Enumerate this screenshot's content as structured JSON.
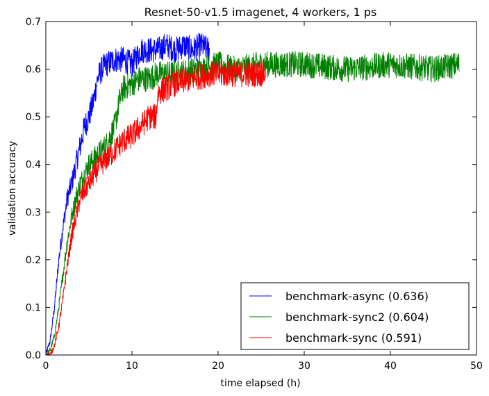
{
  "chart_data": {
    "type": "line",
    "title": "Resnet-50-v1.5 imagenet, 4 workers, 1 ps",
    "xlabel": "time elapsed (h)",
    "ylabel": "validation accuracy",
    "xlim": [
      0,
      50
    ],
    "ylim": [
      0,
      0.7
    ],
    "xticks": [
      0,
      10,
      20,
      30,
      40,
      50
    ],
    "yticks": [
      0.0,
      0.1,
      0.2,
      0.3,
      0.4,
      0.5,
      0.6,
      0.7
    ],
    "xtick_labels": [
      "0",
      "10",
      "20",
      "30",
      "40",
      "50"
    ],
    "ytick_labels": [
      "0.0",
      "0.1",
      "0.2",
      "0.3",
      "0.4",
      "0.5",
      "0.6",
      "0.7"
    ],
    "grid": false,
    "legend_position": "bottom-right",
    "series": [
      {
        "name": "benchmark-async (0.636)",
        "color": "#0000ff",
        "x": [
          0,
          0.5,
          1,
          1.5,
          2,
          2.5,
          3,
          3.5,
          4,
          4.5,
          5,
          5.5,
          6,
          6.5,
          7,
          8,
          9,
          10,
          11,
          12,
          13,
          14,
          15,
          16,
          17,
          18,
          19
        ],
        "y": [
          0.0,
          0.03,
          0.1,
          0.2,
          0.27,
          0.33,
          0.36,
          0.4,
          0.44,
          0.48,
          0.5,
          0.53,
          0.58,
          0.6,
          0.61,
          0.62,
          0.62,
          0.61,
          0.64,
          0.64,
          0.64,
          0.65,
          0.64,
          0.65,
          0.64,
          0.65,
          0.64
        ]
      },
      {
        "name": "benchmark-sync2 (0.604)",
        "color": "#008000",
        "x": [
          0,
          0.5,
          1,
          1.5,
          2,
          2.5,
          3,
          3.5,
          4,
          5,
          6,
          7,
          8,
          8.5,
          9,
          10,
          11,
          12,
          13,
          15,
          18,
          20,
          22,
          25,
          28,
          30,
          35,
          40,
          45,
          48
        ],
        "y": [
          0.0,
          0.01,
          0.04,
          0.1,
          0.17,
          0.24,
          0.29,
          0.33,
          0.36,
          0.4,
          0.42,
          0.44,
          0.48,
          0.53,
          0.56,
          0.57,
          0.58,
          0.58,
          0.59,
          0.59,
          0.6,
          0.61,
          0.6,
          0.61,
          0.61,
          0.61,
          0.6,
          0.61,
          0.6,
          0.61
        ]
      },
      {
        "name": "benchmark-sync (0.591)",
        "color": "#ff0000",
        "x": [
          0,
          0.5,
          1,
          1.5,
          2,
          2.5,
          3,
          3.5,
          4,
          5,
          6,
          7,
          8,
          9,
          10,
          11,
          12,
          12.8,
          13,
          14,
          15,
          17,
          19,
          21,
          23,
          25,
          25.5
        ],
        "y": [
          0.0,
          0.0,
          0.02,
          0.06,
          0.12,
          0.19,
          0.25,
          0.29,
          0.33,
          0.36,
          0.39,
          0.41,
          0.43,
          0.45,
          0.46,
          0.48,
          0.5,
          0.5,
          0.55,
          0.56,
          0.57,
          0.58,
          0.59,
          0.59,
          0.59,
          0.59,
          0.59
        ]
      }
    ]
  }
}
